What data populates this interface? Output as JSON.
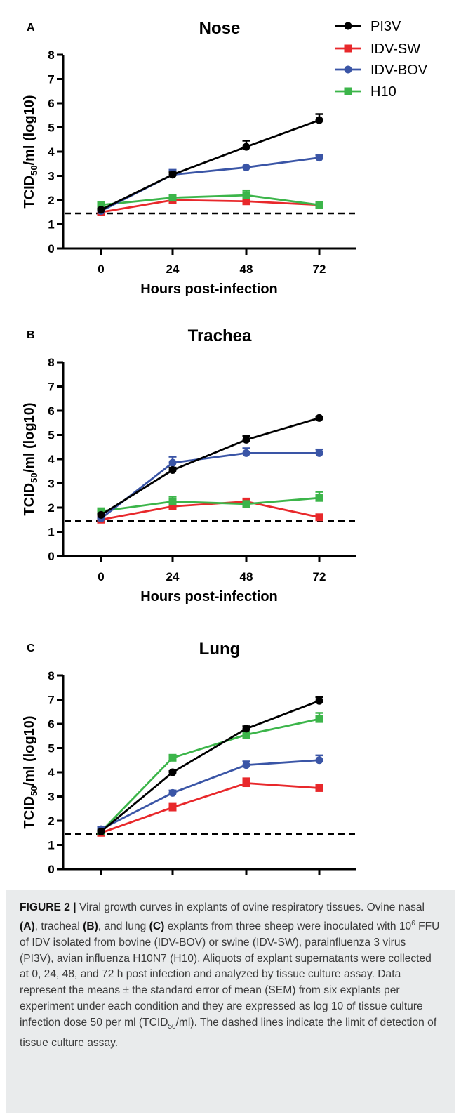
{
  "chart_data": [
    {
      "type": "line",
      "panel_label": "A",
      "title": "Nose",
      "ylabel_main": "TCID",
      "ylabel_sub": "50",
      "ylabel_rest": "/ml (log10)",
      "xlabel": "Hours post-infection",
      "x": [
        0,
        24,
        48,
        72
      ],
      "ylim": [
        0,
        8
      ],
      "yticks": [
        "0",
        "1",
        "2",
        "3",
        "4",
        "5",
        "6",
        "7",
        "8"
      ],
      "xticks": [
        "0",
        "24",
        "48",
        "72"
      ],
      "limit_of_detection": 1.45,
      "legend_placement": "top-right",
      "series": [
        {
          "name": "PI3V",
          "values": [
            1.6,
            3.05,
            4.2,
            5.3
          ],
          "errors": [
            0.05,
            0.1,
            0.25,
            0.25
          ]
        },
        {
          "name": "IDV-SW",
          "values": [
            1.5,
            2.0,
            1.95,
            1.8
          ],
          "errors": [
            0.05,
            0.1,
            0.1,
            0.05
          ]
        },
        {
          "name": "IDV-BOV",
          "values": [
            1.55,
            3.05,
            3.35,
            3.75
          ],
          "errors": [
            0.05,
            0.2,
            0.05,
            0.1
          ]
        },
        {
          "name": "H10",
          "values": [
            1.8,
            2.1,
            2.2,
            1.8
          ],
          "errors": [
            0.05,
            0.1,
            0.2,
            0.05
          ]
        }
      ]
    },
    {
      "type": "line",
      "panel_label": "B",
      "title": "Trachea",
      "ylabel_main": "TCID",
      "ylabel_sub": "50",
      "ylabel_rest": "/ml (log10)",
      "xlabel": "Hours post-infection",
      "x": [
        0,
        24,
        48,
        72
      ],
      "ylim": [
        0,
        8
      ],
      "yticks": [
        "0",
        "1",
        "2",
        "3",
        "4",
        "5",
        "6",
        "7",
        "8"
      ],
      "xticks": [
        "0",
        "24",
        "48",
        "72"
      ],
      "limit_of_detection": 1.45,
      "series": [
        {
          "name": "PI3V",
          "values": [
            1.7,
            3.55,
            4.8,
            5.7
          ],
          "errors": [
            0.05,
            0.1,
            0.15,
            0.05
          ]
        },
        {
          "name": "IDV-SW",
          "values": [
            1.5,
            2.05,
            2.25,
            1.6
          ],
          "errors": [
            0.05,
            0.2,
            0.1,
            0.1
          ]
        },
        {
          "name": "IDV-BOV",
          "values": [
            1.55,
            3.85,
            4.25,
            4.25
          ],
          "errors": [
            0.05,
            0.25,
            0.2,
            0.15
          ]
        },
        {
          "name": "H10",
          "values": [
            1.85,
            2.25,
            2.15,
            2.4
          ],
          "errors": [
            0.05,
            0.2,
            0.1,
            0.25
          ]
        }
      ]
    },
    {
      "type": "line",
      "panel_label": "C",
      "title": "Lung",
      "ylabel_main": "TCID",
      "ylabel_sub": "50",
      "ylabel_rest": "/ml (log10)",
      "xlabel": "Hours post-infection",
      "x": [
        0,
        24,
        48,
        72
      ],
      "ylim": [
        0,
        8
      ],
      "yticks": [
        "0",
        "1",
        "2",
        "3",
        "4",
        "5",
        "6",
        "7",
        "8"
      ],
      "xticks": [
        "0",
        "24",
        "48",
        "72"
      ],
      "limit_of_detection": 1.45,
      "series": [
        {
          "name": "PI3V",
          "values": [
            1.55,
            4.0,
            5.8,
            6.95
          ],
          "errors": [
            0.05,
            0.05,
            0.1,
            0.15
          ]
        },
        {
          "name": "IDV-SW",
          "values": [
            1.5,
            2.55,
            3.55,
            3.35
          ],
          "errors": [
            0.05,
            0.15,
            0.2,
            0.15
          ]
        },
        {
          "name": "IDV-BOV",
          "values": [
            1.65,
            3.15,
            4.3,
            4.5
          ],
          "errors": [
            0.1,
            0.1,
            0.15,
            0.2
          ]
        },
        {
          "name": "H10",
          "values": [
            1.55,
            4.6,
            5.55,
            6.2
          ],
          "errors": [
            0.05,
            0.05,
            0.1,
            0.25
          ]
        }
      ]
    }
  ],
  "legend": [
    {
      "name": "PI3V",
      "color": "#000000",
      "marker": "circle"
    },
    {
      "name": "IDV-SW",
      "color": "#e8282b",
      "marker": "square"
    },
    {
      "name": "IDV-BOV",
      "color": "#3a55a6",
      "marker": "circle"
    },
    {
      "name": "H10",
      "color": "#3cb54a",
      "marker": "square"
    }
  ],
  "caption": {
    "label": "FIGURE 2 |",
    "t1": " Viral growth curves in explants of ovine respiratory tissues. Ovine nasal ",
    "a": "(A)",
    "t2": ", tracheal ",
    "b": "(B)",
    "t3": ", and lung ",
    "c": "(C)",
    "t4": " explants from three sheep were inoculated with 10",
    "sup": "6",
    "t5": " FFU of IDV isolated from bovine (IDV-BOV) or swine (IDV-SW), parainfluenza 3 virus (PI3V), avian influenza H10N7 (H10). Aliquots of explant supernatants were collected at 0, 24, 48, and 72 h post infection and analyzed by tissue culture assay. Data represent the means ± the standard error of mean (SEM) from six explants per experiment under each condition and they are expressed as log 10 of tissue culture infection dose 50 per ml (TCID",
    "sub": "50",
    "t6": "/ml). The dashed lines indicate the limit of detection of tissue culture assay."
  }
}
